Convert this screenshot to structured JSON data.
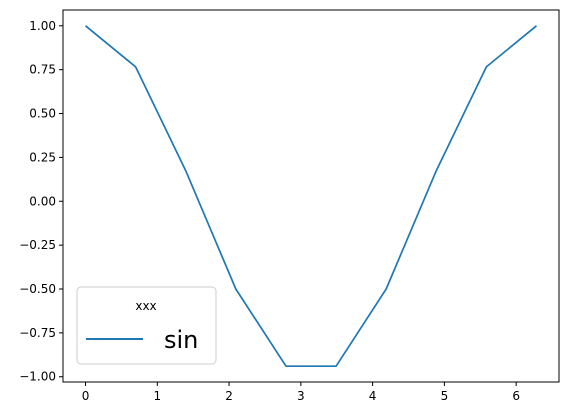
{
  "chart_data": {
    "type": "line",
    "x": [
      0,
      0.698,
      1.396,
      2.094,
      2.793,
      3.491,
      4.189,
      4.887,
      5.585,
      6.283
    ],
    "series": [
      {
        "name": "sin",
        "color": "#1f77b4",
        "values": [
          1.0,
          0.766,
          0.174,
          -0.5,
          -0.94,
          -0.94,
          -0.5,
          0.174,
          0.766,
          1.0
        ]
      }
    ],
    "xlim": [
      -0.314,
      6.597
    ],
    "ylim": [
      -1.03,
      1.09
    ],
    "xticks": [
      0,
      1,
      2,
      3,
      4,
      5,
      6
    ],
    "xtick_labels": [
      "0",
      "1",
      "2",
      "3",
      "4",
      "5",
      "6"
    ],
    "yticks": [
      1.0,
      0.75,
      0.5,
      0.25,
      0.0,
      -0.25,
      -0.5,
      -0.75,
      -1.0
    ],
    "ytick_labels": [
      "1.00",
      "0.75",
      "0.50",
      "0.25",
      "0.00",
      "−0.25",
      "−0.50",
      "−0.75",
      "−1.00"
    ],
    "grid": false,
    "legend": {
      "title": "xxx",
      "placement": "lower-left"
    }
  }
}
